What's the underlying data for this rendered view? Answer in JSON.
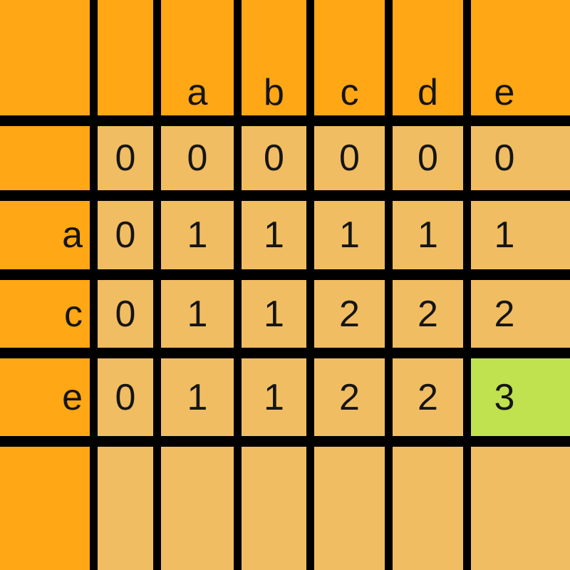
{
  "grid": {
    "corner": "",
    "col_headers": [
      "",
      "a",
      "b",
      "c",
      "d",
      "e"
    ],
    "row_headers": [
      "",
      "a",
      "c",
      "e",
      ""
    ],
    "cells": [
      [
        "0",
        "0",
        "0",
        "0",
        "0",
        "0"
      ],
      [
        "0",
        "1",
        "1",
        "1",
        "1",
        "1"
      ],
      [
        "0",
        "1",
        "1",
        "2",
        "2",
        "2"
      ],
      [
        "0",
        "1",
        "1",
        "2",
        "2",
        "3"
      ],
      [
        "",
        "",
        "",
        "",
        "",
        ""
      ]
    ]
  },
  "highlight": {
    "row_header": "e",
    "col_header": "e",
    "value": "3"
  },
  "colors": {
    "header_bg": "#FFA714",
    "cell_bg": "#F1BD62",
    "highlight_bg": "#C0E24F",
    "grid_line": "#000000",
    "text": "#151515"
  },
  "chart_data": {
    "type": "table",
    "title": "",
    "columns": [
      "",
      "a",
      "b",
      "c",
      "d",
      "e"
    ],
    "rows": [
      {
        "label": "",
        "values": [
          0,
          0,
          0,
          0,
          0,
          0
        ]
      },
      {
        "label": "a",
        "values": [
          0,
          1,
          1,
          1,
          1,
          1
        ]
      },
      {
        "label": "c",
        "values": [
          0,
          1,
          1,
          2,
          2,
          2
        ]
      },
      {
        "label": "e",
        "values": [
          0,
          1,
          1,
          2,
          2,
          3
        ]
      },
      {
        "label": "",
        "values": []
      }
    ],
    "highlighted_cell": {
      "row_label": "e",
      "col_label": "e",
      "value": 3
    },
    "layout_hints": {
      "header_row_position": "top",
      "header_column_position": "left",
      "grid": "thick-black-lines",
      "last_row_empty": true
    }
  }
}
